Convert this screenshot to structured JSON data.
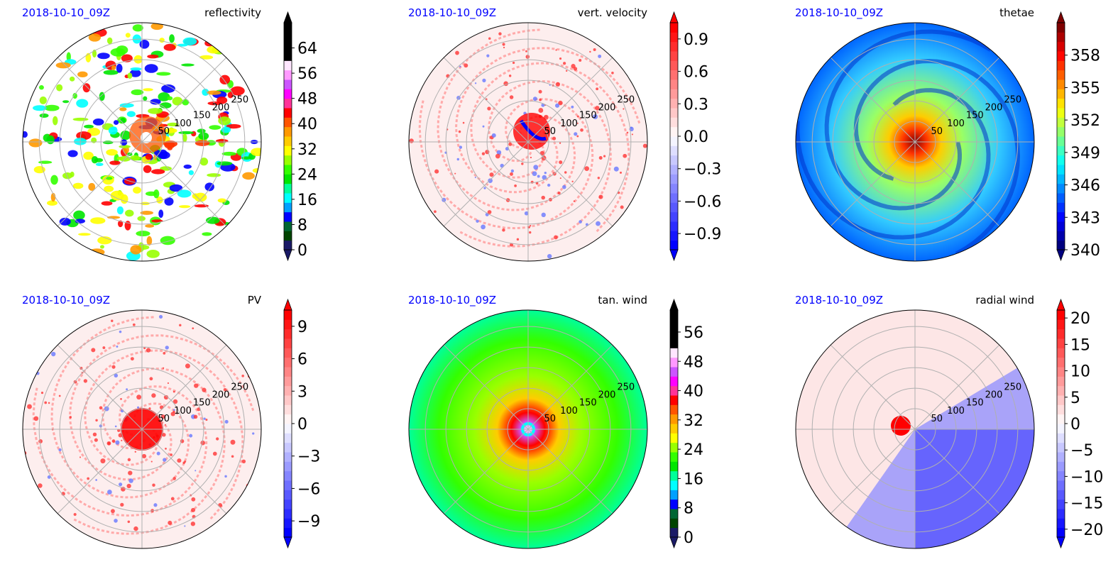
{
  "figure": {
    "valid_time": "2018-10-10_09Z",
    "colors": {
      "timestamp": "#0000ff",
      "title": "#000000",
      "grid": "#b0b0b0"
    },
    "range_ring_labels": [
      "50",
      "100",
      "150",
      "200",
      "250"
    ]
  },
  "chart_data": [
    {
      "id": "reflectivity",
      "type": "heatmap",
      "title": "reflectivity",
      "timestamp": "2018-10-10_09Z",
      "colorbar": {
        "ticks": [
          "0",
          "8",
          "16",
          "24",
          "32",
          "40",
          "48",
          "56",
          "64"
        ],
        "min": 0,
        "max": 72,
        "extend": "both",
        "colormap": "nws-reflectivity"
      }
    },
    {
      "id": "vert-velocity",
      "type": "heatmap",
      "title": "vert. velocity",
      "timestamp": "2018-10-10_09Z",
      "colorbar": {
        "ticks": [
          "−0.9",
          "−0.6",
          "−0.3",
          "0.0",
          "0.3",
          "0.6",
          "0.9"
        ],
        "min": -1.05,
        "max": 1.05,
        "extend": "both",
        "colormap": "bwr"
      }
    },
    {
      "id": "thetae",
      "type": "heatmap",
      "title": "thetae",
      "timestamp": "2018-10-10_09Z",
      "colorbar": {
        "ticks": [
          "340",
          "343",
          "346",
          "349",
          "352",
          "355",
          "358"
        ],
        "min": 340,
        "max": 361,
        "extend": "both",
        "colormap": "jet"
      }
    },
    {
      "id": "pv",
      "type": "heatmap",
      "title": "PV",
      "timestamp": "2018-10-10_09Z",
      "colorbar": {
        "ticks": [
          "−9",
          "−6",
          "−3",
          "0",
          "3",
          "6",
          "9"
        ],
        "min": -10.5,
        "max": 10.5,
        "extend": "both",
        "colormap": "bwr"
      }
    },
    {
      "id": "tan-wind",
      "type": "heatmap",
      "title": "tan. wind",
      "timestamp": "2018-10-10_09Z",
      "colorbar": {
        "ticks": [
          "0",
          "8",
          "16",
          "24",
          "32",
          "40",
          "48",
          "56"
        ],
        "min": 0,
        "max": 62,
        "extend": "both",
        "colormap": "nws-reflectivity"
      }
    },
    {
      "id": "radial-wind",
      "type": "heatmap",
      "title": "radial wind",
      "timestamp": "2018-10-10_09Z",
      "colorbar": {
        "ticks": [
          "−20",
          "−15",
          "−10",
          "−5",
          "0",
          "5",
          "10",
          "15",
          "20"
        ],
        "min": -21.5,
        "max": 21.5,
        "extend": "both",
        "colormap": "bwr"
      }
    }
  ]
}
